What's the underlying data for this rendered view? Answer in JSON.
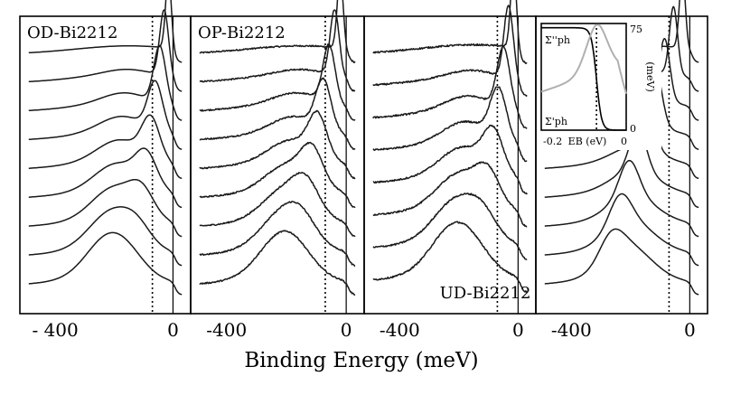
{
  "chart_data": {
    "type": "line",
    "xlabel": "Binding Energy (meV)",
    "xlim": [
      -520,
      60
    ],
    "panels": [
      {
        "label": "OD-Bi2212",
        "label_position": "top-left",
        "xticks": [
          "- 400",
          "0"
        ],
        "dotted_line_x": -70,
        "n_curves": 9,
        "peak_x": -15,
        "peak_shift": -20,
        "broad_end": 0.72
      },
      {
        "label": "OP-Bi2212",
        "label_position": "top-left",
        "xticks": [
          "-400",
          "0"
        ],
        "dotted_line_x": -70,
        "n_curves": 9,
        "peak_x": -20,
        "peak_shift": -25,
        "broad_end": 0.6
      },
      {
        "label": "UD-Bi2212",
        "label_position": "bottom-right",
        "xticks": [
          "-400",
          "0"
        ],
        "dotted_line_x": -70,
        "n_curves": 8,
        "peak_x": -15,
        "peak_shift": -20,
        "broad_end": 0.85
      },
      {
        "label": "",
        "label_position": "",
        "xticks": [
          "-400",
          "0"
        ],
        "dotted_line_x": -70,
        "n_curves": 9,
        "peak_x": -25,
        "peak_shift": -40,
        "broad_end": 0.3
      }
    ],
    "inset": {
      "series": [
        {
          "name": "Σ''ph",
          "color": "#000000"
        },
        {
          "name": "Σ'ph",
          "color": "#b0b0b0"
        }
      ],
      "xlabel": "EB (eV)",
      "xticks": [
        "-0.2",
        "0"
      ],
      "ylabel": "(meV)",
      "yticks": [
        "75",
        "0"
      ],
      "xlim": [
        -0.2,
        0
      ],
      "ylim": [
        0,
        75
      ]
    }
  }
}
